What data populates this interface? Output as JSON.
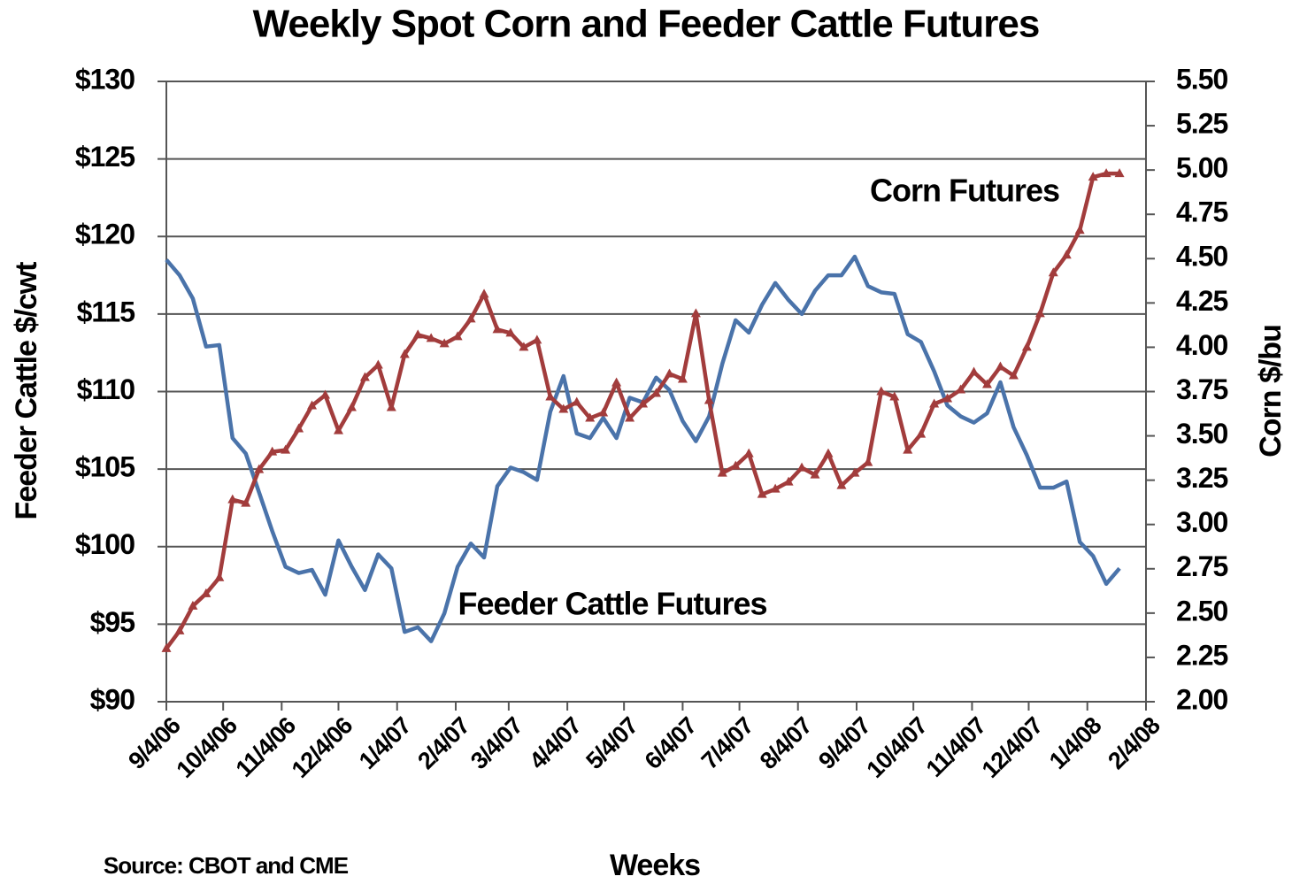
{
  "chart_data": {
    "type": "line",
    "title": "Weekly Spot Corn and Feeder Cattle Futures",
    "xlabel": "Weeks",
    "ylabel": "Feeder Cattle $/cwt",
    "y2label": "Corn $/bu",
    "source": "Source:  CBOT and CME",
    "x": [
      0,
      1,
      2,
      3,
      4,
      5,
      6,
      7,
      8,
      9,
      10,
      11,
      12,
      13,
      14,
      15,
      16,
      17,
      18,
      19,
      20,
      21,
      22,
      23,
      24,
      25,
      26,
      27,
      28,
      29,
      30,
      31,
      32,
      33,
      34,
      35,
      36,
      37,
      38,
      39,
      40,
      41,
      42,
      43,
      44,
      45,
      46,
      47,
      48,
      49,
      50,
      51,
      52,
      53,
      54,
      55,
      56,
      57,
      58,
      59,
      60,
      61,
      62,
      63,
      64,
      65,
      66,
      67,
      68,
      69,
      70,
      71,
      72
    ],
    "xlim": [
      0,
      74
    ],
    "xticks": [
      {
        "value": 0,
        "label": "9/4/06"
      },
      {
        "value": 4.29,
        "label": "10/4/06"
      },
      {
        "value": 8.71,
        "label": "11/4/06"
      },
      {
        "value": 13,
        "label": "12/4/06"
      },
      {
        "value": 17.43,
        "label": "1/4/07"
      },
      {
        "value": 21.86,
        "label": "2/4/07"
      },
      {
        "value": 25.86,
        "label": "3/4/07"
      },
      {
        "value": 30.29,
        "label": "4/4/07"
      },
      {
        "value": 34.57,
        "label": "5/4/07"
      },
      {
        "value": 39,
        "label": "6/4/07"
      },
      {
        "value": 43.29,
        "label": "7/4/07"
      },
      {
        "value": 47.71,
        "label": "8/4/07"
      },
      {
        "value": 52.14,
        "label": "9/4/07"
      },
      {
        "value": 56.43,
        "label": "10/4/07"
      },
      {
        "value": 60.86,
        "label": "11/4/07"
      },
      {
        "value": 65.14,
        "label": "12/4/07"
      },
      {
        "value": 69.57,
        "label": "1/4/08"
      },
      {
        "value": 74,
        "label": "2/4/08"
      }
    ],
    "ylim": [
      90,
      130
    ],
    "yticks": [
      {
        "value": 90,
        "label": "$90"
      },
      {
        "value": 95,
        "label": "$95"
      },
      {
        "value": 100,
        "label": "$100"
      },
      {
        "value": 105,
        "label": "$105"
      },
      {
        "value": 110,
        "label": "$110"
      },
      {
        "value": 115,
        "label": "$115"
      },
      {
        "value": 120,
        "label": "$120"
      },
      {
        "value": 125,
        "label": "$125"
      },
      {
        "value": 130,
        "label": "$130"
      }
    ],
    "y2lim": [
      2,
      5.5
    ],
    "y2ticks": [
      {
        "value": 2,
        "label": "2.00"
      },
      2.25,
      {
        "value": 2.5,
        "label": "2.50"
      },
      2.75,
      {
        "value": 3,
        "label": "3.00"
      },
      3.25,
      {
        "value": 3.5,
        "label": "3.50"
      },
      3.75,
      {
        "value": 4,
        "label": "4.00"
      },
      4.25,
      {
        "value": 4.5,
        "label": "4.50"
      },
      4.75,
      {
        "value": 5,
        "label": "5.00"
      },
      5.25,
      {
        "value": 5.5,
        "label": "5.50"
      }
    ],
    "grid": true,
    "series": [
      {
        "name": "Feeder Cattle Futures",
        "color": "#4a73aa",
        "axis": "y",
        "marker": "none",
        "values": [
          118.5,
          117.5,
          116,
          112.9,
          113,
          107,
          106,
          103.5,
          101,
          98.7,
          98.3,
          98.5,
          96.9,
          100.4,
          98.7,
          97.2,
          99.5,
          98.6,
          94.5,
          94.8,
          93.9,
          95.7,
          98.7,
          100.2,
          99.3,
          103.9,
          105.1,
          104.8,
          104.3,
          108.7,
          111,
          107.3,
          107,
          108.3,
          107,
          109.6,
          109.3,
          110.9,
          110.1,
          108.1,
          106.8,
          108.4,
          111.8,
          114.6,
          113.8,
          115.6,
          117,
          115.9,
          115,
          116.5,
          117.5,
          117.5,
          118.7,
          116.8,
          116.4,
          116.3,
          113.7,
          113.2,
          111.3,
          109.1,
          108.4,
          108,
          108.6,
          110.6,
          107.7,
          105.9,
          103.8,
          103.8,
          104.2,
          100.3,
          99.4,
          97.6,
          98.6
        ]
      },
      {
        "name": "Corn Futures",
        "color": "#a23c3c",
        "axis": "y2",
        "marker": "triangle",
        "values": [
          2.3,
          2.4,
          2.54,
          2.61,
          2.7,
          3.14,
          3.12,
          3.31,
          3.41,
          3.42,
          3.54,
          3.67,
          3.73,
          3.53,
          3.66,
          3.83,
          3.9,
          3.66,
          3.96,
          4.07,
          4.05,
          4.02,
          4.06,
          4.16,
          4.3,
          4.1,
          4.08,
          4,
          4.04,
          3.72,
          3.65,
          3.69,
          3.6,
          3.63,
          3.8,
          3.6,
          3.68,
          3.74,
          3.85,
          3.82,
          4.19,
          3.7,
          3.29,
          3.33,
          3.4,
          3.17,
          3.2,
          3.24,
          3.32,
          3.28,
          3.4,
          3.22,
          3.29,
          3.35,
          3.75,
          3.72,
          3.42,
          3.51,
          3.68,
          3.71,
          3.76,
          3.86,
          3.79,
          3.89,
          3.84,
          4,
          4.19,
          4.42,
          4.52,
          4.66,
          4.96,
          4.98,
          4.98
        ]
      }
    ]
  }
}
